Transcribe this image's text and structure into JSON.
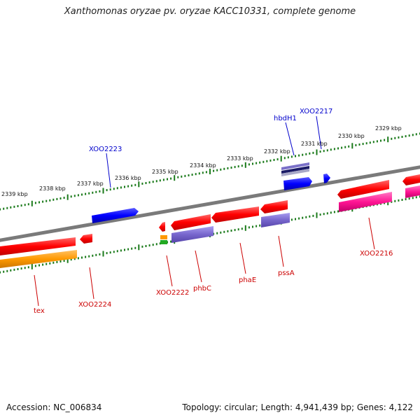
{
  "title": "Xanthomonas oryzae pv. oryzae KACC10331, complete genome",
  "footer": {
    "accession": "Accession: NC_006834",
    "summary": "Topology: circular; Length: 4,941,439 bp; Genes: 4,122"
  },
  "ticks": [
    {
      "label": "2339 kbp"
    },
    {
      "label": "2338 kbp"
    },
    {
      "label": "2337 kbp"
    },
    {
      "label": "2336 kbp"
    },
    {
      "label": "2335 kbp"
    },
    {
      "label": "2334 kbp"
    },
    {
      "label": "2333 kbp"
    },
    {
      "label": "2332 kbp"
    },
    {
      "label": "2331 kbp"
    },
    {
      "label": "2330 kbp"
    },
    {
      "label": "2329 kbp"
    }
  ],
  "gene_labels": {
    "blue": [
      "XOO2223",
      "hbdH1",
      "XOO2217"
    ],
    "red": [
      "tex",
      "XOO2224",
      "XOO2222",
      "phbC",
      "phaE",
      "pssA",
      "XOO2216"
    ]
  },
  "colors": {
    "backbone": "#808080",
    "tick": "#1a7a1a",
    "cds_red": "#ff0000",
    "cds_blue": "#0000ff",
    "cds_orange": "#ff9900",
    "cds_purple": "#7766cc",
    "cds_magenta": "#ff1493",
    "label_blue": "#0000cc",
    "label_red": "#cc0000"
  }
}
